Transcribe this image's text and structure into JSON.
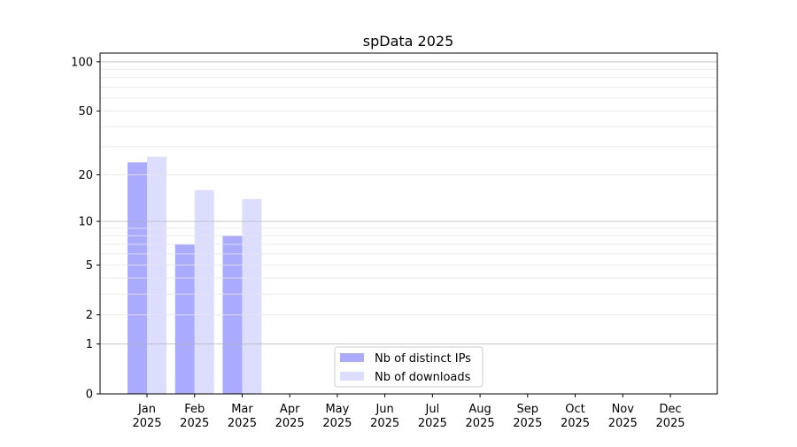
{
  "chart_data": {
    "type": "bar",
    "title": "spData 2025",
    "xlabel": "",
    "ylabel": "",
    "yscale": "symlog (log10(1+y))",
    "ylim": [
      0,
      113
    ],
    "yticks": [
      0,
      1,
      2,
      5,
      10,
      20,
      50,
      100
    ],
    "ytick_labels": [
      "0",
      "1",
      "2",
      "5",
      "10",
      "20",
      "50",
      "100"
    ],
    "grid": true,
    "legend_position": "bottom-center",
    "categories": [
      "Jan\n2025",
      "Feb\n2025",
      "Mar\n2025",
      "Apr\n2025",
      "May\n2025",
      "Jun\n2025",
      "Jul\n2025",
      "Aug\n2025",
      "Sep\n2025",
      "Oct\n2025",
      "Nov\n2025",
      "Dec\n2025"
    ],
    "series": [
      {
        "name": "Nb of distinct IPs",
        "color": "#aaaaff",
        "values": [
          24,
          7,
          8,
          0,
          0,
          0,
          0,
          0,
          0,
          0,
          0,
          0
        ]
      },
      {
        "name": "Nb of downloads",
        "color": "#ddddff",
        "values": [
          26,
          16,
          14,
          0,
          0,
          0,
          0,
          0,
          0,
          0,
          0,
          0
        ]
      }
    ]
  }
}
